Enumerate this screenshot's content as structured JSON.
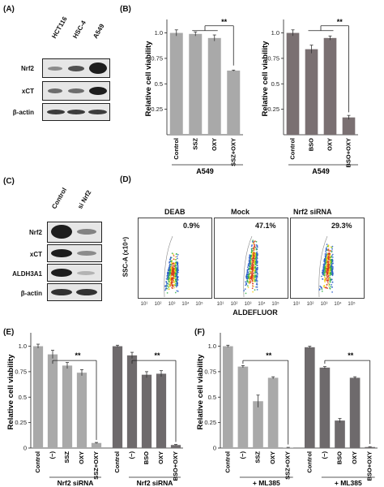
{
  "panels": {
    "A": {
      "label": "(A)",
      "columns": [
        "HCT116",
        "HSC-4",
        "A549"
      ],
      "rows": [
        "Nrf2",
        "xCT",
        "β-actin"
      ]
    },
    "C": {
      "label": "(C)",
      "columns": [
        "Control",
        "si Nrf2"
      ],
      "rows": [
        "Nrf2",
        "xCT",
        "ALDH3A1",
        "β-actin"
      ]
    },
    "D": {
      "label": "(D)",
      "plots": [
        {
          "title": "DEAB",
          "percent": "0.9%"
        },
        {
          "title": "Mock",
          "percent": "47.1%"
        },
        {
          "title": "Nrf2 siRNA",
          "percent": "29.3%"
        }
      ],
      "ylabel": "SSC-A (x10⁴)",
      "xlabel": "ALDEFLUOR",
      "xticks": [
        "10¹",
        "10²",
        "10³",
        "10⁴",
        "10⁵"
      ]
    }
  },
  "chart_data": [
    {
      "panel": "(B)",
      "type": "bar",
      "categories": [
        "Control",
        "SSZ",
        "OXY",
        "SSZ+OXY"
      ],
      "values": [
        1.0,
        0.99,
        0.95,
        0.63
      ],
      "errors": [
        0.03,
        0.02,
        0.03,
        0.005
      ],
      "ylabel": "Relative cell viability",
      "yticks": [
        "0.25",
        "0.5",
        "0.75",
        "1.0"
      ],
      "ylim": [
        0,
        1.1
      ],
      "group_label": "A549",
      "significance": "**",
      "color": "#a9a9a9"
    },
    {
      "panel": "",
      "type": "bar",
      "categories": [
        "Control",
        "BSO",
        "OXY",
        "BSO+OXY"
      ],
      "values": [
        1.0,
        0.84,
        0.95,
        0.17
      ],
      "errors": [
        0.03,
        0.04,
        0.02,
        0.02
      ],
      "ylabel": "Relative cell viability",
      "yticks": [
        "0.25",
        "0.5",
        "0.75",
        "1.0"
      ],
      "ylim": [
        0,
        1.1
      ],
      "group_label": "A549",
      "significance": "**",
      "color": "#7a7072"
    },
    {
      "panel": "(E)",
      "type": "bar",
      "categories": [
        "Control",
        "(−)",
        "SSZ",
        "OXY",
        "SSZ+OXY",
        "Control",
        "(−)",
        "BSO",
        "OXY",
        "BSO+OXY"
      ],
      "values": [
        1.0,
        0.92,
        0.81,
        0.74,
        0.05,
        1.0,
        0.91,
        0.72,
        0.73,
        0.03
      ],
      "errors": [
        0.02,
        0.04,
        0.03,
        0.03,
        0.005,
        0.01,
        0.03,
        0.03,
        0.03,
        0.005
      ],
      "colors": [
        "#a9a9a9",
        "#a9a9a9",
        "#a9a9a9",
        "#a9a9a9",
        "#a9a9a9",
        "#6e6a6c",
        "#6e6a6c",
        "#6e6a6c",
        "#6e6a6c",
        "#6e6a6c"
      ],
      "ylabel": "Relative cell viability",
      "yticks": [
        "0",
        "0.25",
        "0.5",
        "0.75",
        "1.0"
      ],
      "ylim": [
        0,
        1.1
      ],
      "group_labels": [
        "Nrf2 siRNA",
        "Nrf2 siRNA"
      ],
      "significance": [
        "**",
        "**"
      ]
    },
    {
      "panel": "(F)",
      "type": "bar",
      "categories": [
        "Control",
        "(−)",
        "SSZ",
        "OXY",
        "SSZ+OXY",
        "Control",
        "(−)",
        "BSO",
        "OXY",
        "BSO+OXY"
      ],
      "values": [
        1.0,
        0.8,
        0.46,
        0.69,
        0.005,
        0.99,
        0.79,
        0.27,
        0.69,
        0.01
      ],
      "errors": [
        0.01,
        0.01,
        0.06,
        0.01,
        0.002,
        0.01,
        0.01,
        0.02,
        0.01,
        0.002
      ],
      "colors": [
        "#a9a9a9",
        "#a9a9a9",
        "#a9a9a9",
        "#a9a9a9",
        "#a9a9a9",
        "#6e6a6c",
        "#6e6a6c",
        "#6e6a6c",
        "#6e6a6c",
        "#6e6a6c"
      ],
      "ylabel": "Relative cell viability",
      "yticks": [
        "0",
        "0.25",
        "0.5",
        "0.75",
        "1.0"
      ],
      "ylim": [
        0,
        1.1
      ],
      "group_labels": [
        "+ ML385",
        "+ ML385"
      ],
      "significance": [
        "**",
        "**"
      ]
    }
  ]
}
